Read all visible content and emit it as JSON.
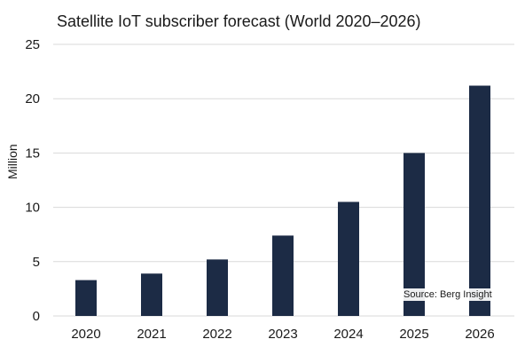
{
  "chart_data": {
    "type": "bar",
    "title": "Satellite IoT subscriber forecast (World 2020–2026)",
    "ylabel": "Million",
    "xlabel": "",
    "categories": [
      "2020",
      "2021",
      "2022",
      "2023",
      "2024",
      "2025",
      "2026"
    ],
    "values": [
      3.3,
      3.9,
      5.2,
      7.4,
      10.5,
      15.0,
      21.2
    ],
    "ylim": [
      0,
      25
    ],
    "yticks": [
      0,
      5,
      10,
      15,
      20,
      25
    ],
    "grid": true,
    "bar_color": "#1c2b45",
    "grid_color": "#d9d9d9",
    "source": "Source: Berg Insight"
  }
}
